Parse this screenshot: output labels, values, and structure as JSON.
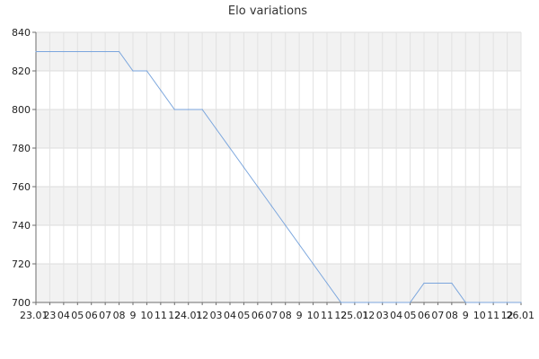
{
  "chart_data": {
    "type": "line",
    "title": "Elo variations",
    "xlabel": "",
    "ylabel": "",
    "ylim": [
      700,
      840
    ],
    "yticks": [
      700,
      720,
      740,
      760,
      780,
      800,
      820,
      840
    ],
    "grid": true,
    "x_tick_labels": [
      "23.01",
      "23",
      "04",
      "05",
      "06",
      "07",
      "08",
      "9",
      "10",
      "11",
      "12",
      "24.01",
      "12",
      "03",
      "04",
      "05",
      "06",
      "07",
      "08",
      "9",
      "10",
      "11",
      "12",
      "25.01",
      "12",
      "03",
      "04",
      "05",
      "06",
      "07",
      "08",
      "9",
      "10",
      "11",
      "12",
      "26.01"
    ],
    "series": [
      {
        "color": "#7ba6dd",
        "values": [
          830,
          830,
          830,
          830,
          830,
          830,
          830,
          820,
          820,
          810,
          800,
          800,
          800,
          790,
          780,
          770,
          760,
          750,
          740,
          730,
          720,
          710,
          700,
          700,
          700,
          700,
          700,
          700,
          710,
          710,
          710,
          700,
          700,
          700,
          700,
          700
        ]
      }
    ]
  }
}
